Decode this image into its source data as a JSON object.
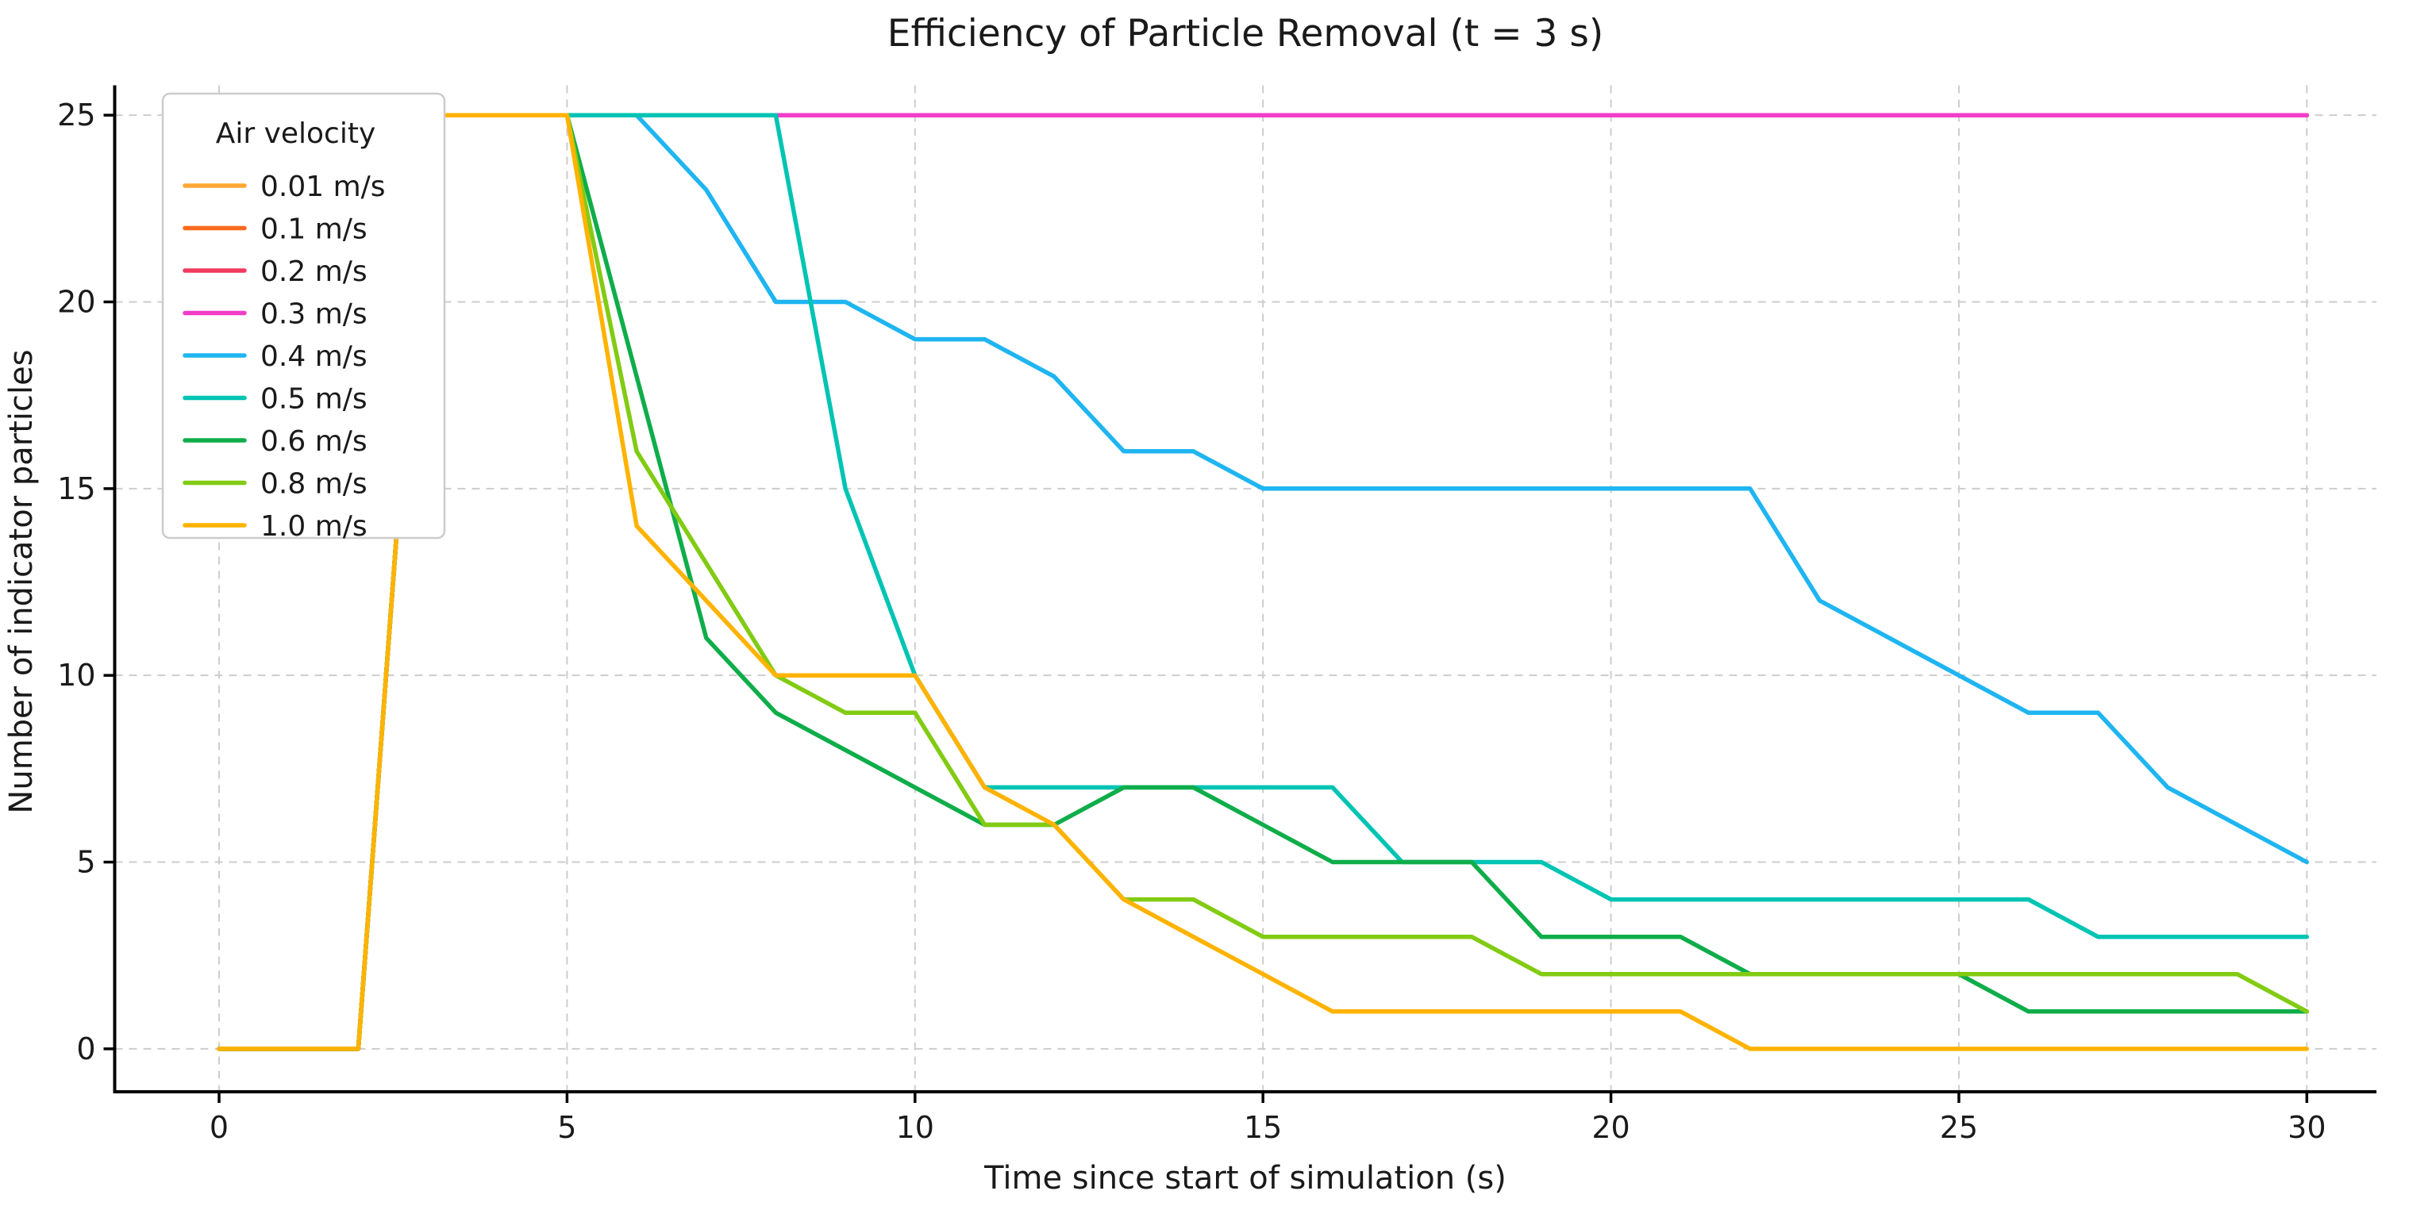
{
  "title": "Efficiency of Particle Removal (t = 3 s)",
  "axes": {
    "xlabel": "Time since start of simulation (s)",
    "ylabel": "Number of indicator particles"
  },
  "legend": {
    "title": "Air velocity",
    "entries": [
      "0.01 m/s",
      "0.1 m/s",
      "0.2 m/s",
      "0.3 m/s",
      "0.4 m/s",
      "0.5 m/s",
      "0.6 m/s",
      "0.8 m/s",
      "1.0 m/s"
    ]
  },
  "chart_data": {
    "type": "line",
    "title": "Efficiency of Particle Removal (t = 3 s)",
    "xlabel": "Time since start of simulation (s)",
    "ylabel": "Number of indicator particles",
    "xlim": [
      -1.5,
      31.0
    ],
    "ylim": [
      -1.15,
      25.8
    ],
    "xticks": [
      0,
      5,
      10,
      15,
      20,
      25,
      30
    ],
    "yticks": [
      0,
      5,
      10,
      15,
      20,
      25
    ],
    "grid": true,
    "grid_color": "#cdcdcd",
    "background": "#ffffff",
    "legend_title": "Air velocity",
    "legend_position": "upper left",
    "x": [
      0,
      1,
      2,
      3,
      4,
      5,
      6,
      7,
      8,
      9,
      10,
      11,
      12,
      13,
      14,
      15,
      16,
      17,
      18,
      19,
      20,
      21,
      22,
      23,
      24,
      25,
      26,
      27,
      28,
      29,
      30
    ],
    "series": [
      {
        "name": "0.01 m/s",
        "color": "#ffa733",
        "values": [
          0,
          0,
          0,
          25,
          25,
          25,
          25,
          25,
          25,
          25,
          25,
          25,
          25,
          25,
          25,
          25,
          25,
          25,
          25,
          25,
          25,
          25,
          25,
          25,
          25,
          25,
          25,
          25,
          25,
          25,
          25
        ]
      },
      {
        "name": "0.1 m/s",
        "color": "#fb6a1e",
        "values": [
          0,
          0,
          0,
          25,
          25,
          25,
          25,
          25,
          25,
          25,
          25,
          25,
          25,
          25,
          25,
          25,
          25,
          25,
          25,
          25,
          25,
          25,
          25,
          25,
          25,
          25,
          25,
          25,
          25,
          25,
          25
        ]
      },
      {
        "name": "0.2 m/s",
        "color": "#f23a5f",
        "values": [
          0,
          0,
          0,
          25,
          25,
          25,
          25,
          25,
          25,
          25,
          25,
          25,
          25,
          25,
          25,
          25,
          25,
          25,
          25,
          25,
          25,
          25,
          25,
          25,
          25,
          25,
          25,
          25,
          25,
          25,
          25
        ]
      },
      {
        "name": "0.3 m/s",
        "color": "#f03ec8",
        "values": [
          0,
          0,
          0,
          25,
          25,
          25,
          25,
          25,
          25,
          25,
          25,
          25,
          25,
          25,
          25,
          25,
          25,
          25,
          25,
          25,
          25,
          25,
          25,
          25,
          25,
          25,
          25,
          25,
          25,
          25,
          25
        ]
      },
      {
        "name": "0.4 m/s",
        "color": "#1fb5f1",
        "values": [
          0,
          0,
          0,
          25,
          25,
          25,
          25,
          23,
          20,
          20,
          19,
          19,
          18,
          16,
          16,
          15,
          15,
          15,
          15,
          15,
          15,
          15,
          15,
          12,
          11,
          10,
          9,
          9,
          7,
          6,
          5
        ]
      },
      {
        "name": "0.5 m/s",
        "color": "#00c4b3",
        "values": [
          0,
          0,
          0,
          25,
          25,
          25,
          25,
          25,
          25,
          15,
          10,
          7,
          7,
          7,
          7,
          7,
          7,
          5,
          5,
          5,
          4,
          4,
          4,
          4,
          4,
          4,
          4,
          3,
          3,
          3,
          3
        ]
      },
      {
        "name": "0.6 m/s",
        "color": "#0fad4a",
        "values": [
          0,
          0,
          0,
          25,
          25,
          25,
          18,
          11,
          9,
          8,
          7,
          6,
          6,
          7,
          7,
          6,
          5,
          5,
          5,
          3,
          3,
          3,
          2,
          2,
          2,
          2,
          1,
          1,
          1,
          1,
          1
        ]
      },
      {
        "name": "0.8 m/s",
        "color": "#82cb13",
        "values": [
          0,
          0,
          0,
          25,
          25,
          25,
          16,
          13,
          10,
          9,
          9,
          6,
          6,
          4,
          4,
          3,
          3,
          3,
          3,
          2,
          2,
          2,
          2,
          2,
          2,
          2,
          2,
          2,
          2,
          2,
          1
        ]
      },
      {
        "name": "1.0 m/s",
        "color": "#ffb300",
        "values": [
          0,
          0,
          0,
          25,
          25,
          25,
          14,
          12,
          10,
          10,
          10,
          7,
          6,
          4,
          3,
          2,
          1,
          1,
          1,
          1,
          1,
          1,
          0,
          0,
          0,
          0,
          0,
          0,
          0,
          0,
          0
        ]
      }
    ]
  }
}
